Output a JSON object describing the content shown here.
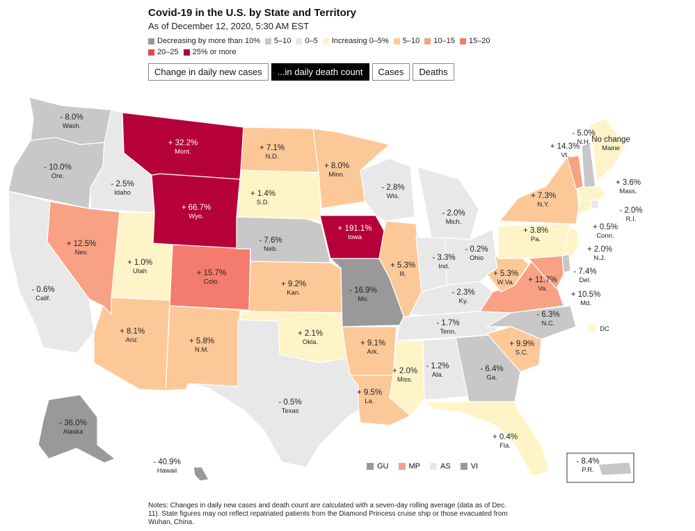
{
  "title": "Covid-19 in the U.S. by State and Territory",
  "subtitle": "As of December 12, 2020, 5:30 AM EST",
  "legend": [
    {
      "label": "Decreasing by more than 10%",
      "color": "#999999"
    },
    {
      "label": "5–10",
      "color": "#c8c8c8"
    },
    {
      "label": "0–5",
      "color": "#e8e8e8"
    },
    {
      "label": "Increasing 0–5%",
      "color": "#fff4c8"
    },
    {
      "label": "5–10",
      "color": "#fdc898"
    },
    {
      "label": "10–15",
      "color": "#f9a184"
    },
    {
      "label": "15–20",
      "color": "#f47c6e"
    },
    {
      "label": "20–25",
      "color": "#e8425a"
    },
    {
      "label": "25% or more",
      "color": "#b5003a"
    }
  ],
  "tabs": [
    {
      "label": "Change in daily new cases",
      "active": false
    },
    {
      "label": "...in daily death count",
      "active": true
    },
    {
      "label": "Cases",
      "active": false
    },
    {
      "label": "Deaths",
      "active": false
    }
  ],
  "states": {
    "wash": {
      "value": "- 8.0%",
      "name": "Wash.",
      "color": "#c8c8c8"
    },
    "ore": {
      "value": "- 10.0%",
      "name": "Ore.",
      "color": "#c8c8c8"
    },
    "calif": {
      "value": "- 0.6%",
      "name": "Calif.",
      "color": "#e8e8e8"
    },
    "idaho": {
      "value": "- 2.5%",
      "name": "Idaho",
      "color": "#e8e8e8"
    },
    "nev": {
      "value": "+ 12.5%",
      "name": "Nev.",
      "color": "#f9a184"
    },
    "mont": {
      "value": "+ 32.2%",
      "name": "Mont.",
      "color": "#b5003a"
    },
    "wyo": {
      "value": "+ 66.7%",
      "name": "Wyo.",
      "color": "#b5003a"
    },
    "utah": {
      "value": "+ 1.0%",
      "name": "Utah",
      "color": "#fff4c8"
    },
    "colo": {
      "value": "+ 15.7%",
      "name": "Colo.",
      "color": "#f47c6e"
    },
    "ariz": {
      "value": "+ 8.1%",
      "name": "Ariz.",
      "color": "#fdc898"
    },
    "nm": {
      "value": "+ 5.8%",
      "name": "N.M.",
      "color": "#fdc898"
    },
    "nd": {
      "value": "+ 7.1%",
      "name": "N.D.",
      "color": "#fdc898"
    },
    "sd": {
      "value": "+ 1.4%",
      "name": "S.D.",
      "color": "#fff4c8"
    },
    "neb": {
      "value": "- 7.6%",
      "name": "Neb.",
      "color": "#c8c8c8"
    },
    "kan": {
      "value": "+ 9.2%",
      "name": "Kan.",
      "color": "#fdc898"
    },
    "okla": {
      "value": "+ 2.1%",
      "name": "Okla.",
      "color": "#fff4c8"
    },
    "texas": {
      "value": "- 0.5%",
      "name": "Texas",
      "color": "#e8e8e8"
    },
    "minn": {
      "value": "+ 8.0%",
      "name": "Minn.",
      "color": "#fdc898"
    },
    "iowa": {
      "value": "+ 191.1%",
      "name": "Iowa",
      "color": "#b5003a"
    },
    "mo": {
      "value": "- 16.9%",
      "name": "Mo.",
      "color": "#999999"
    },
    "ark": {
      "value": "+ 9.1%",
      "name": "Ark.",
      "color": "#fdc898"
    },
    "la": {
      "value": "+ 9.5%",
      "name": "La.",
      "color": "#fdc898"
    },
    "wis": {
      "value": "- 2.8%",
      "name": "Wis.",
      "color": "#e8e8e8"
    },
    "ill": {
      "value": "+ 5.3%",
      "name": "Ill.",
      "color": "#fdc898"
    },
    "mich": {
      "value": "- 2.0%",
      "name": "Mich.",
      "color": "#e8e8e8"
    },
    "ind": {
      "value": "- 3.3%",
      "name": "Ind.",
      "color": "#e8e8e8"
    },
    "ohio": {
      "value": "- 0.2%",
      "name": "Ohio",
      "color": "#e8e8e8"
    },
    "ky": {
      "value": "- 2.3%",
      "name": "Ky.",
      "color": "#e8e8e8"
    },
    "tenn": {
      "value": "- 1.7%",
      "name": "Tenn.",
      "color": "#e8e8e8"
    },
    "miss": {
      "value": "+ 2.0%",
      "name": "Miss.",
      "color": "#fff4c8"
    },
    "ala": {
      "value": "- 1.2%",
      "name": "Ala.",
      "color": "#e8e8e8"
    },
    "ga": {
      "value": "- 6.4%",
      "name": "Ga.",
      "color": "#c8c8c8"
    },
    "fla": {
      "value": "+ 0.4%",
      "name": "Fla.",
      "color": "#fff4c8"
    },
    "sc": {
      "value": "+ 9.9%",
      "name": "S.C.",
      "color": "#fdc898"
    },
    "nc": {
      "value": "- 6.3%",
      "name": "N.C.",
      "color": "#c8c8c8"
    },
    "va": {
      "value": "+ 11.7%",
      "name": "Va.",
      "color": "#f9a184"
    },
    "wva": {
      "value": "+ 5.3%",
      "name": "W.Va.",
      "color": "#fdc898"
    },
    "pa": {
      "value": "+ 3.8%",
      "name": "Pa.",
      "color": "#fff4c8"
    },
    "ny": {
      "value": "+ 7.3%",
      "name": "N.Y.",
      "color": "#fdc898"
    },
    "vt": {
      "value": "+ 14.3%",
      "name": "Vt.",
      "color": "#f9a184"
    },
    "nh": {
      "value": "- 5.0%",
      "name": "N.H.",
      "color": "#c8c8c8"
    },
    "maine": {
      "value": "No change",
      "name": "Maine",
      "color": "#fff4c8"
    },
    "mass": {
      "value": "+ 3.6%",
      "name": "Mass.",
      "color": "#fff4c8"
    },
    "ri": {
      "value": "- 2.0%",
      "name": "R.I.",
      "color": "#e8e8e8"
    },
    "conn": {
      "value": "+ 0.5%",
      "name": "Conn.",
      "color": "#fff4c8"
    },
    "nj": {
      "value": "+ 2.0%",
      "name": "N.J.",
      "color": "#fff4c8"
    },
    "del": {
      "value": "- 7.4%",
      "name": "Del.",
      "color": "#c8c8c8"
    },
    "md": {
      "value": "+ 10.5%",
      "name": "Md.",
      "color": "#f9a184"
    },
    "dc": {
      "value": "",
      "name": "DC",
      "color": "#fff4c8"
    },
    "alaska": {
      "value": "- 36.0%",
      "name": "Alaska",
      "color": "#999999"
    },
    "hawaii": {
      "value": "- 40.9%",
      "name": "Hawaii",
      "color": "#999999"
    },
    "pr": {
      "value": "- 8.4%",
      "name": "P.R.",
      "color": "#c8c8c8"
    }
  },
  "territories": [
    {
      "label": "GU",
      "color": "#999999"
    },
    {
      "label": "MP",
      "color": "#f9a184"
    },
    {
      "label": "AS",
      "color": "#e8e8e8"
    },
    {
      "label": "VI",
      "color": "#999999"
    }
  ],
  "notes": "Notes: Changes in daily new cases and death count are calculated with a seven-day rolling average (data as of Dec. 11). State figures may not reflect repatriated patients from the Diamond Princess cruise ship or those evacuated from Wuhan, China."
}
